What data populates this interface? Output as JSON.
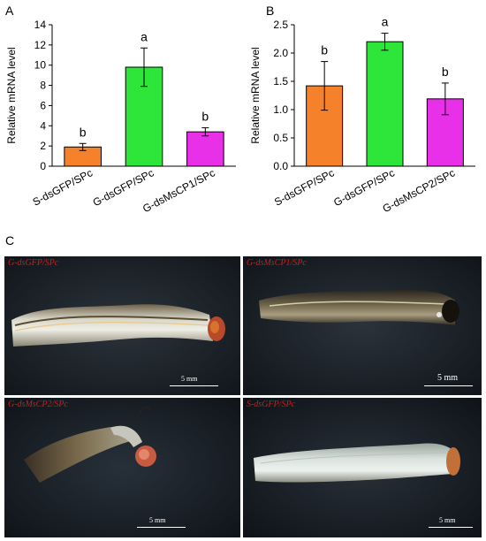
{
  "panels": {
    "a": "A",
    "b": "B",
    "c": "C"
  },
  "chart_data": [
    {
      "type": "bar",
      "panel": "A",
      "categories": [
        "S-dsGFP/SPc",
        "G-dsGFP/SPc",
        "G-dsMsCP1/SPc"
      ],
      "values": [
        1.9,
        9.8,
        3.4
      ],
      "errors": [
        0.35,
        1.9,
        0.4
      ],
      "letters": [
        "b",
        "a",
        "b"
      ],
      "colors": [
        "#f5822a",
        "#2ee63a",
        "#e830e8"
      ],
      "ylabel": "Relative mRNA level",
      "ylim": [
        0,
        14
      ],
      "yticks": [
        "0",
        "2",
        "4",
        "6",
        "8",
        "10",
        "12",
        "14"
      ],
      "grid": false
    },
    {
      "type": "bar",
      "panel": "B",
      "categories": [
        "S-dsGFP/SPc",
        "G-dsGFP/SPc",
        "G-dsMsCP2/SPc"
      ],
      "values": [
        1.42,
        2.2,
        1.19
      ],
      "errors": [
        0.43,
        0.15,
        0.28
      ],
      "letters": [
        "b",
        "a",
        "b"
      ],
      "colors": [
        "#f5822a",
        "#2ee63a",
        "#e830e8"
      ],
      "ylabel": "Relative mRNA level",
      "ylim": [
        0,
        2.5
      ],
      "yticks": [
        "0.0",
        "0.5",
        "1.0",
        "1.5",
        "2.0",
        "2.5"
      ],
      "grid": false
    }
  ],
  "photos": [
    {
      "label": "G-dsGFP/SPc",
      "scale": "5 mm"
    },
    {
      "label": "G-dsMsCP1/SPc",
      "scale": "5 mm"
    },
    {
      "label": "G-dsMsCP2/SPc",
      "scale": "5 mm"
    },
    {
      "label": "S-dsGFP/SPc",
      "scale": "5 mm"
    }
  ]
}
